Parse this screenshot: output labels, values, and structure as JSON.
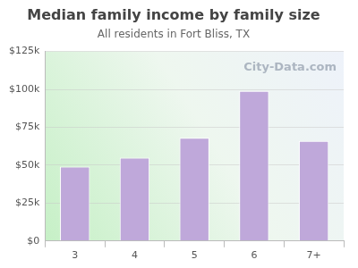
{
  "chart_data": {
    "type": "bar",
    "title": "Median family income by family size",
    "subtitle": "All residents in Fort Bliss, TX",
    "annotations": [
      "City-Data.com"
    ],
    "categories": [
      "3",
      "4",
      "5",
      "6",
      "7+"
    ],
    "values": [
      49000,
      55000,
      68000,
      99000,
      66000
    ],
    "color": "#bfa8da",
    "ylim": [
      0,
      125000
    ],
    "yticks": [
      {
        "value": 0,
        "label": "$0"
      },
      {
        "value": 25000,
        "label": "$25k"
      },
      {
        "value": 50000,
        "label": "$50k"
      },
      {
        "value": 75000,
        "label": "$75k"
      },
      {
        "value": 100000,
        "label": "$100k"
      },
      {
        "value": 125000,
        "label": "$125k"
      }
    ],
    "grid": true
  }
}
